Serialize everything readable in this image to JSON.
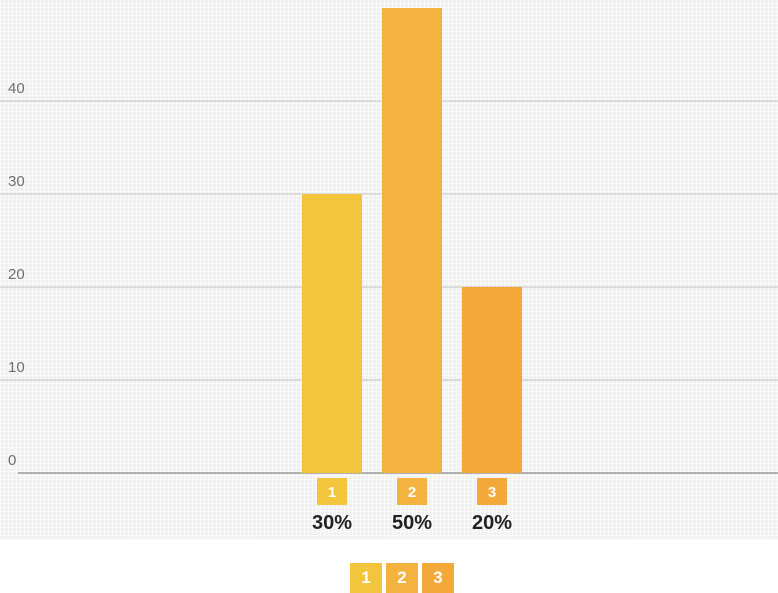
{
  "chart_data": {
    "type": "bar",
    "categories": [
      "1",
      "2",
      "3"
    ],
    "values": [
      30,
      50,
      20
    ],
    "value_labels": [
      "30%",
      "50%",
      "20%"
    ],
    "colors": [
      "#f2c53c",
      "#f3b33e",
      "#f3a83a"
    ],
    "yticks": [
      "0",
      "10",
      "20",
      "30",
      "40"
    ],
    "ylim": [
      0,
      50
    ],
    "grid": true,
    "title": "",
    "xlabel": "",
    "ylabel": ""
  },
  "legend": {
    "items": [
      {
        "label": "1",
        "color": "#f2c53c"
      },
      {
        "label": "2",
        "color": "#f3b33e"
      },
      {
        "label": "3",
        "color": "#f3a83a"
      }
    ]
  }
}
